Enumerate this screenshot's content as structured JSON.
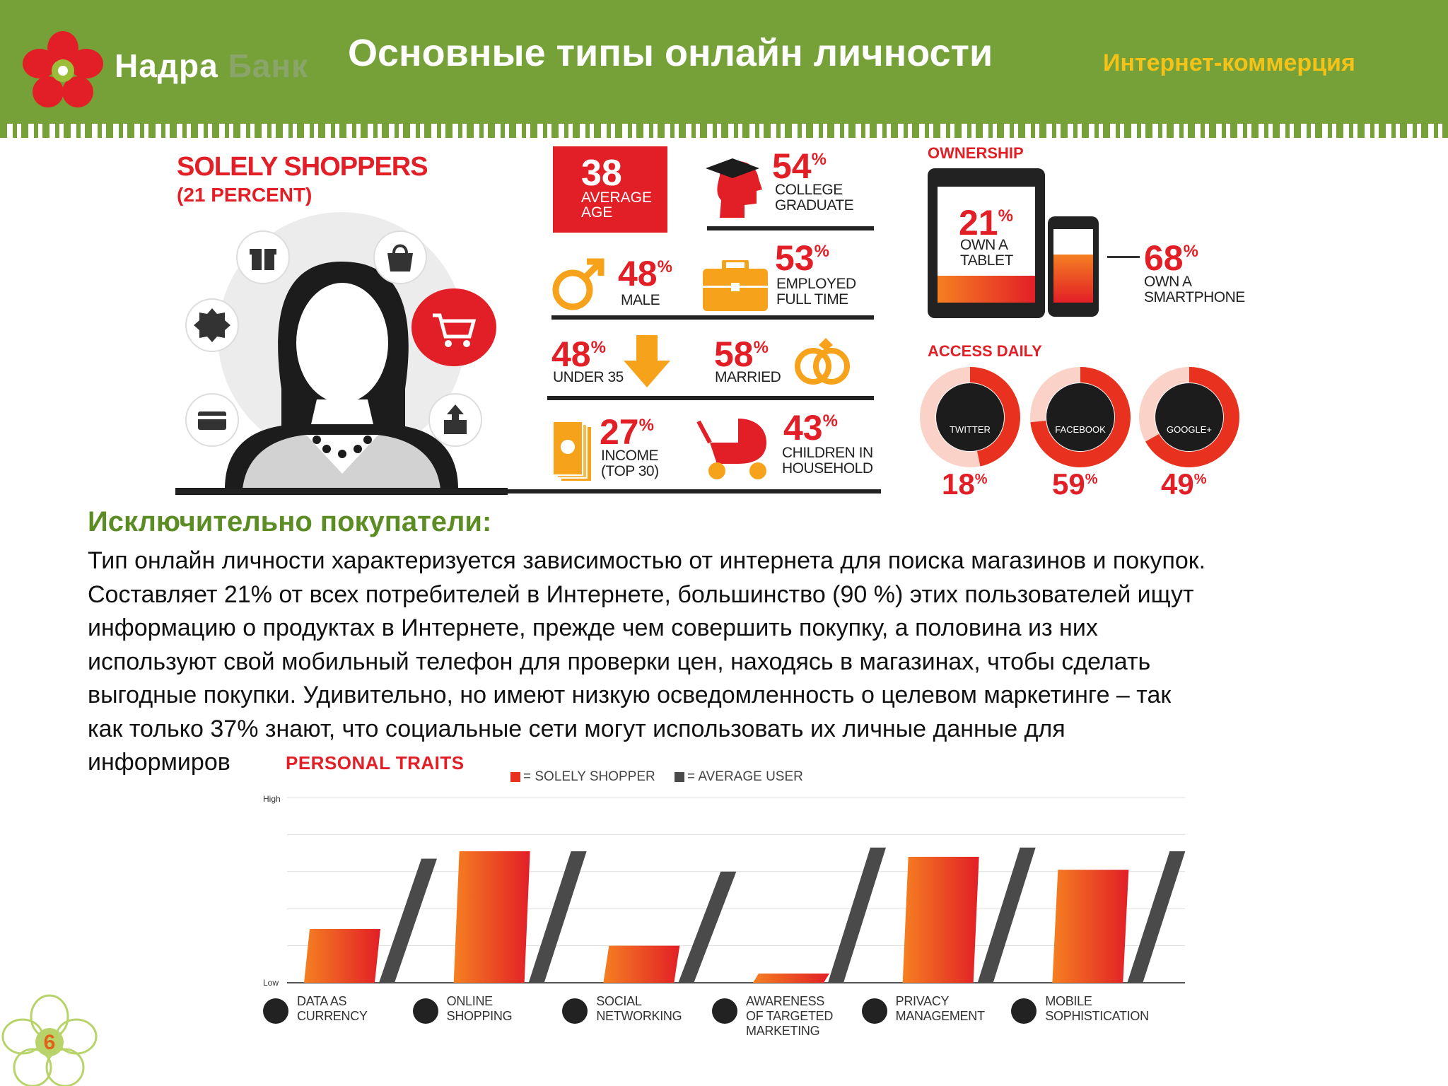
{
  "header": {
    "logo_name": "Надра",
    "logo_bank": "Банк",
    "title": "Основные типы онлайн личности",
    "section": "Интернет-коммерция"
  },
  "infographic": {
    "persona_title": "SOLELY SHOPPERS",
    "persona_subtitle": "(21 PERCENT)",
    "stats": {
      "age": {
        "value": "38",
        "label1": "AVERAGE",
        "label2": "AGE"
      },
      "college": {
        "value": "54",
        "pct": "%",
        "label1": "COLLEGE",
        "label2": "GRADUATE"
      },
      "male": {
        "value": "48",
        "pct": "%",
        "label1": "MALE"
      },
      "employed": {
        "value": "53",
        "pct": "%",
        "label1": "EMPLOYED",
        "label2": "FULL TIME"
      },
      "under35": {
        "value": "48",
        "pct": "%",
        "label1": "UNDER 35"
      },
      "married": {
        "value": "58",
        "pct": "%",
        "label1": "MARRIED"
      },
      "income": {
        "value": "27",
        "pct": "%",
        "label1": "INCOME",
        "label2": "(TOP 30)"
      },
      "children": {
        "value": "43",
        "pct": "%",
        "label1": "CHILDREN IN",
        "label2": "HOUSEHOLD"
      }
    },
    "ownership": {
      "title": "OWNERSHIP",
      "tablet": {
        "value": "21",
        "pct": "%",
        "label1": "OWN A",
        "label2": "TABLET"
      },
      "smartphone": {
        "value": "68",
        "pct": "%",
        "label1": "OWN A",
        "label2": "SMARTPHONE"
      }
    },
    "access_daily": {
      "title": "ACCESS DAILY",
      "items": [
        {
          "name": "TWITTER",
          "value": "18",
          "pct": "%",
          "fraction": 0.18
        },
        {
          "name": "FACEBOOK",
          "value": "59",
          "pct": "%",
          "fraction": 0.59
        },
        {
          "name": "GOOGLE+",
          "value": "49",
          "pct": "%",
          "fraction": 0.49
        }
      ]
    }
  },
  "description": {
    "title": "Исключительно покупатели:",
    "lines": [
      "Тип онлайн личности характеризуется зависимостью от интернета для поиска магазинов и покупок.",
      "Составляет  21% от всех потребителей в Интернете,  большинство (90 %) этих пользователей ищут",
      "информацию о продуктах в Интернете, прежде чем совершить покупку, а половина из них",
      "используют свой мобильный телефон для проверки цен, находясь в магазинах, чтобы сделать",
      "выгодные покупки. Удивительно, но имеют низкую осведомленность о целевом маркетинге – так",
      "как только 37% знают, что социальные сети могут использовать их личные данные для",
      "информиров"
    ]
  },
  "chart_data": {
    "type": "bar",
    "title": "PERSONAL TRAITS",
    "ylabel_high": "High",
    "ylabel_low": "Low",
    "categories": [
      "DATA AS\nCURRENCY",
      "ONLINE\nSHOPPING",
      "SOCIAL\nNETWORKING",
      "AWARENESS\nOF TARGETED\nMARKETING",
      "PRIVACY\nMANAGEMENT",
      "MOBILE\nSOPHISTICATION"
    ],
    "series": [
      {
        "name": "= SOLELY SHOPPER",
        "values": [
          0.29,
          0.71,
          0.2,
          0.05,
          0.68,
          0.61
        ],
        "color": "#e8321f"
      },
      {
        "name": "= AVERAGE USER",
        "values": [
          0.67,
          0.71,
          0.6,
          0.73,
          0.73,
          0.71
        ],
        "color": "#4a4a4a"
      }
    ],
    "ylim": [
      0,
      1
    ],
    "grid": true,
    "legend": "top"
  },
  "page_number": "6",
  "colors": {
    "green": "#76a138",
    "red": "#e21f26",
    "orange": "#f7a21b",
    "yellow": "#f5c218"
  }
}
